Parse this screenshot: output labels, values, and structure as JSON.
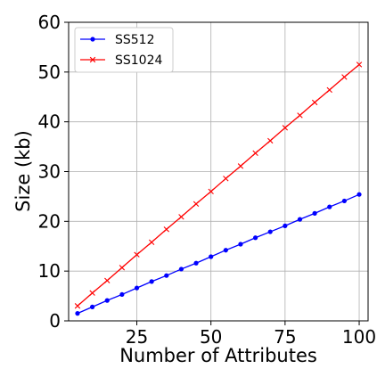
{
  "chart_data": {
    "type": "line",
    "title": "",
    "xlabel": "Number of Attributes",
    "ylabel": "Size (kb)",
    "xlim": [
      2,
      103
    ],
    "ylim": [
      0,
      60
    ],
    "xticks": [
      25,
      50,
      75,
      100
    ],
    "yticks": [
      0,
      10,
      20,
      30,
      40,
      50,
      60
    ],
    "grid": true,
    "legend_position": "top-left",
    "x": [
      5,
      10,
      15,
      20,
      25,
      30,
      35,
      40,
      45,
      50,
      55,
      60,
      65,
      70,
      75,
      80,
      85,
      90,
      95,
      100
    ],
    "series": [
      {
        "name": "SS512",
        "color": "#0000ff",
        "marker": "dot",
        "values": [
          1.5,
          2.8,
          4.1,
          5.3,
          6.6,
          7.9,
          9.1,
          10.4,
          11.6,
          12.9,
          14.2,
          15.4,
          16.7,
          17.9,
          19.1,
          20.4,
          21.6,
          22.9,
          24.1,
          25.4
        ]
      },
      {
        "name": "SS1024",
        "color": "#ff0000",
        "marker": "x",
        "values": [
          3.0,
          5.6,
          8.1,
          10.7,
          13.3,
          15.8,
          18.4,
          20.9,
          23.5,
          26.0,
          28.6,
          31.1,
          33.7,
          36.2,
          38.8,
          41.3,
          43.9,
          46.4,
          49.0,
          51.5
        ]
      }
    ]
  }
}
